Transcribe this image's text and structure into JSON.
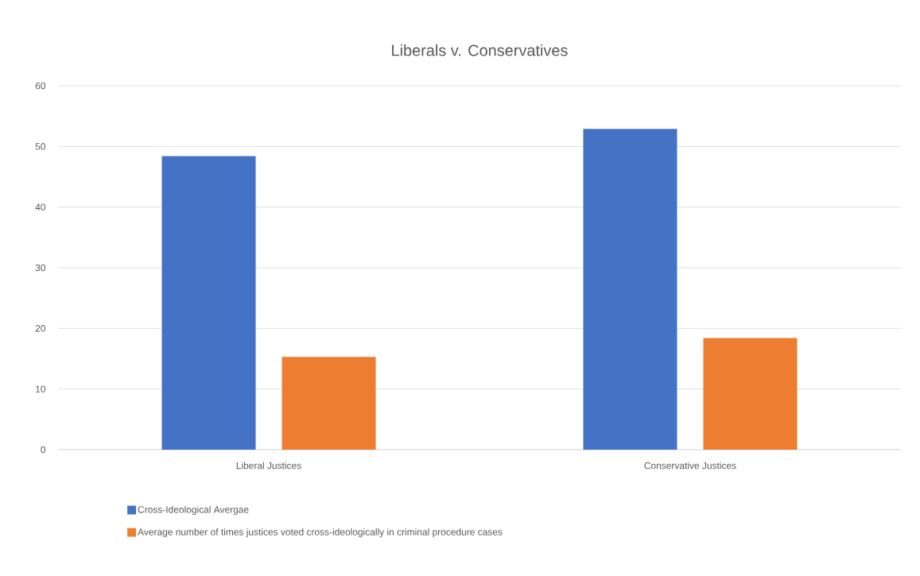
{
  "chart_data": {
    "type": "bar",
    "title": "Liberals v. Conservatives",
    "categories": [
      "Liberal Justices",
      "Conservative Justices"
    ],
    "series": [
      {
        "name": "Cross-Ideological Avergae",
        "color": "#4472c4",
        "values": [
          48.4,
          52.9
        ]
      },
      {
        "name": "Average number of times justices voted cross-ideologically in criminal procedure cases",
        "color": "#ed7d31",
        "values": [
          15.3,
          18.4
        ]
      }
    ],
    "ylim": [
      0,
      60
    ],
    "yticks": [
      0,
      10,
      20,
      30,
      40,
      50,
      60
    ],
    "grid": "y",
    "legend": "bottom"
  }
}
